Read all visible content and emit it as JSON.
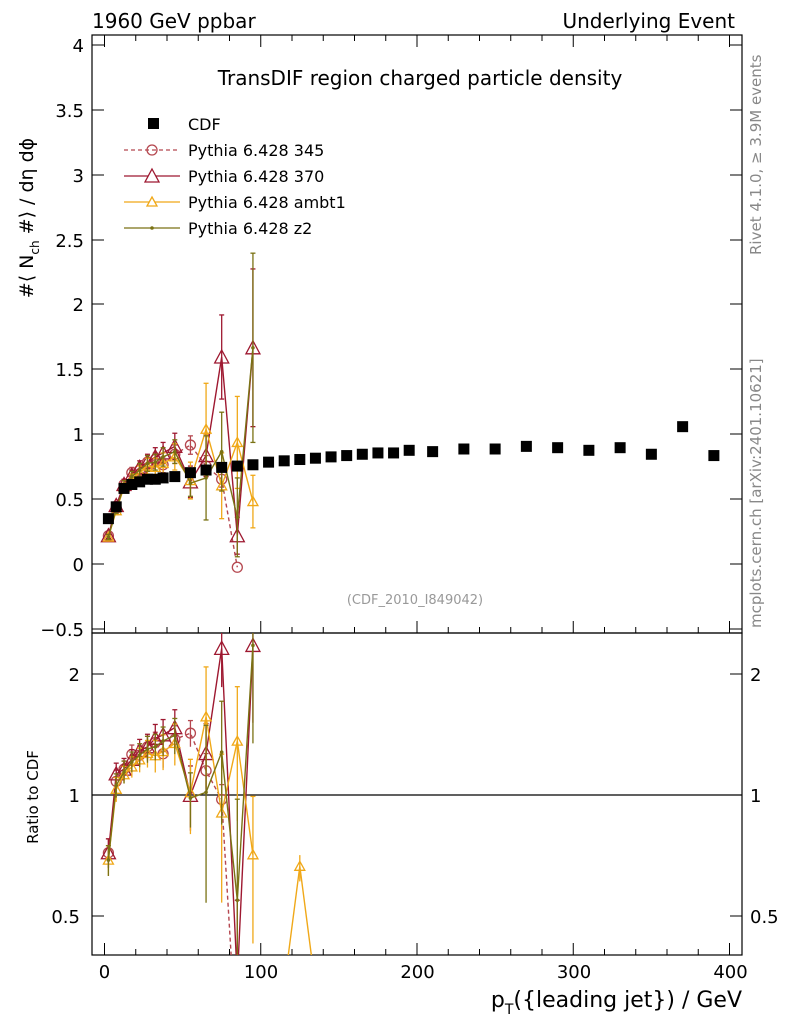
{
  "header": {
    "left": "1960 GeV ppbar",
    "right": "Underlying Event"
  },
  "side": {
    "rivet": "Rivet 4.1.0, ≥ 3.9M events",
    "source": "mcplots.cern.ch [arXiv:2401.10621]"
  },
  "chart_data": {
    "type": "scatter",
    "title": "TransDIF region charged particle density",
    "analysis_label": "(CDF_2010_I849042)",
    "xlabel_main": "p",
    "xlabel_sub": "T",
    "xlabel_rest": "({leading jet}) / GeV",
    "ylabel_main": "#⟨ N",
    "ylabel_sub": "ch",
    "ylabel_rest": " #⟩ / dη dϕ",
    "ratio_ylabel": "Ratio to CDF",
    "xlim": [
      -8,
      408
    ],
    "ylim": [
      -0.5,
      4.05
    ],
    "ratio_ylim": [
      0.36,
      2.3
    ],
    "x_ticks": [
      "0",
      "100",
      "200",
      "300",
      "400"
    ],
    "y_ticks": [
      "−0.5",
      "0",
      "0.5",
      "1",
      "1.5",
      "2",
      "2.5",
      "3",
      "3.5",
      "4"
    ],
    "ratio_ticks": [
      "0.5",
      "1",
      "2"
    ],
    "legend": [
      "CDF",
      "Pythia 6.428 345",
      "Pythia 6.428 370",
      "Pythia 6.428 ambt1",
      "Pythia 6.428 z2"
    ],
    "colors": {
      "data": "#000000",
      "p345": "#b5474f",
      "p370": "#9e1830",
      "ambt1": "#f0a818",
      "z2": "#7a7214"
    },
    "series": [
      {
        "name": "CDF",
        "x": [
          2.5,
          7.5,
          12.5,
          17.5,
          22.5,
          27.5,
          32.5,
          37.5,
          45,
          55,
          65,
          75,
          85,
          95,
          105,
          115,
          125,
          135,
          145,
          155,
          165,
          175,
          185,
          195,
          210,
          230,
          250,
          270,
          290,
          310,
          330,
          350,
          370,
          390
        ],
        "y": [
          0.37,
          0.46,
          0.6,
          0.63,
          0.65,
          0.67,
          0.67,
          0.68,
          0.69,
          0.72,
          0.74,
          0.76,
          0.77,
          0.78,
          0.8,
          0.81,
          0.82,
          0.83,
          0.84,
          0.85,
          0.86,
          0.87,
          0.87,
          0.89,
          0.88,
          0.9,
          0.9,
          0.92,
          0.91,
          0.89,
          0.91,
          0.86,
          1.07,
          0.85
        ]
      },
      {
        "name": "Pythia 6.428 345",
        "x": [
          2.5,
          7.5,
          12.5,
          17.5,
          22.5,
          27.5,
          32.5,
          37.5,
          45,
          55,
          65,
          75,
          85
        ],
        "y": [
          0.24,
          0.45,
          0.63,
          0.72,
          0.74,
          0.8,
          0.82,
          0.78,
          0.86,
          0.93,
          0.77,
          0.67,
          0.0
        ],
        "err": [
          0.02,
          0.03,
          0.03,
          0.04,
          0.04,
          0.05,
          0.05,
          0.06,
          0.07,
          0.07,
          0.08,
          0.06,
          0.0
        ]
      },
      {
        "name": "Pythia 6.428 370",
        "x": [
          2.5,
          7.5,
          12.5,
          17.5,
          22.5,
          27.5,
          32.5,
          37.5,
          45,
          55,
          65,
          75,
          85,
          95
        ],
        "y": [
          0.24,
          0.47,
          0.63,
          0.7,
          0.76,
          0.8,
          0.84,
          0.87,
          0.92,
          0.65,
          0.85,
          1.6,
          0.24,
          1.67
        ],
        "err": [
          0.02,
          0.03,
          0.04,
          0.04,
          0.05,
          0.06,
          0.07,
          0.08,
          0.1,
          0.12,
          0.16,
          0.32,
          0.14,
          0.6
        ]
      },
      {
        "name": "Pythia 6.428 ambt1",
        "x": [
          2.5,
          7.5,
          12.5,
          17.5,
          22.5,
          27.5,
          32.5,
          37.5,
          45,
          55,
          65,
          75,
          85,
          95
        ],
        "y": [
          0.23,
          0.43,
          0.61,
          0.67,
          0.72,
          0.77,
          0.76,
          0.79,
          0.84,
          0.66,
          1.05,
          0.62,
          0.95,
          0.5
        ],
        "err": [
          0.02,
          0.03,
          0.03,
          0.04,
          0.05,
          0.06,
          0.07,
          0.08,
          0.1,
          0.14,
          0.35,
          0.25,
          0.35,
          0.2
        ]
      },
      {
        "name": "Pythia 6.428 z2",
        "x": [
          2.5,
          7.5,
          12.5,
          17.5,
          22.5,
          27.5,
          32.5,
          37.5,
          45,
          55,
          65,
          75,
          85,
          95
        ],
        "y": [
          0.23,
          0.44,
          0.62,
          0.69,
          0.74,
          0.79,
          0.8,
          0.84,
          0.88,
          0.64,
          0.68,
          0.88,
          0.38,
          1.67
        ],
        "err": [
          0.02,
          0.03,
          0.04,
          0.04,
          0.05,
          0.06,
          0.06,
          0.07,
          0.09,
          0.1,
          0.32,
          0.3,
          0.3,
          0.72
        ]
      }
    ]
  }
}
